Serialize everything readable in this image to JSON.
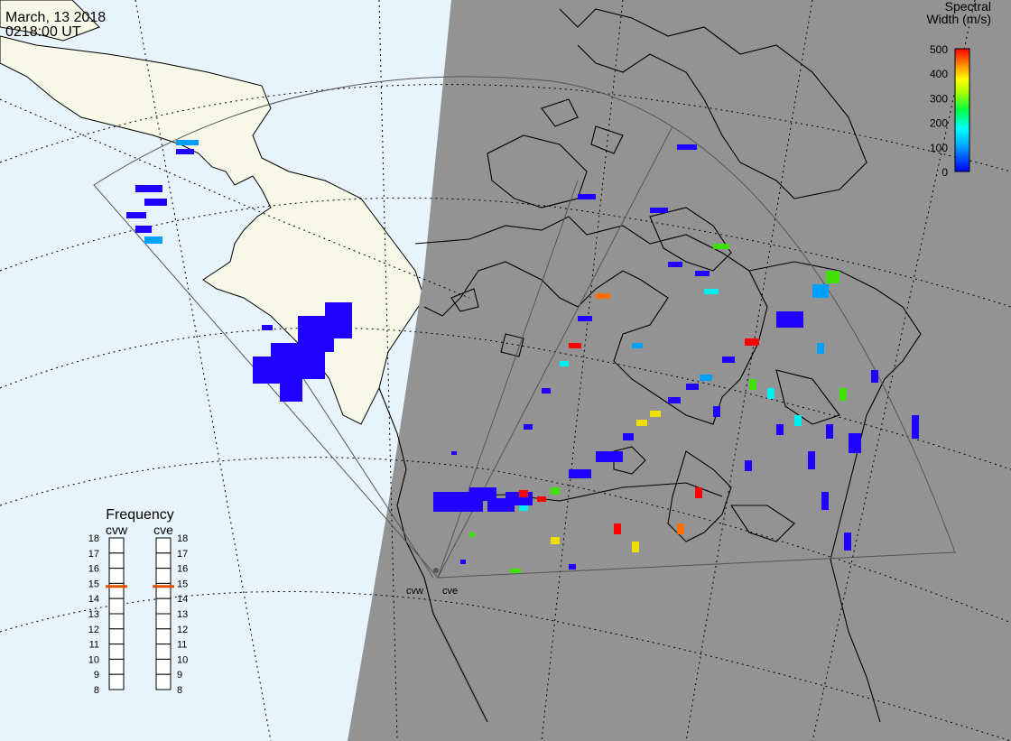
{
  "header": {
    "date": "March, 13 2018",
    "time": "0218:00 UT"
  },
  "legend": {
    "title_line1": "Spectral",
    "title_line2": "Width (m/s)",
    "ticks": [
      "500",
      "400",
      "300",
      "200",
      "100",
      "0"
    ],
    "colors": [
      "#ff0000",
      "#ff8000",
      "#ffff00",
      "#00ff00",
      "#00ffff",
      "#0000ff"
    ]
  },
  "frequency": {
    "title": "Frequency",
    "radar_left": "cvw",
    "radar_right": "cve",
    "scale": [
      "18",
      "17",
      "16",
      "15",
      "14",
      "13",
      "12",
      "11",
      "10",
      "9",
      "8"
    ],
    "left_value": 14.8,
    "right_value": 14.8,
    "marker_color": "#e05000"
  },
  "radars": {
    "left": "cvw",
    "right": "cve"
  },
  "map_colors": {
    "ocean_day": "#e8f4fc",
    "land_day": "#f8f8e8",
    "night": "#939393",
    "scatter_low": "#2000ff",
    "scatter_mid": "#00a0ff",
    "scatter_cyan": "#00f0f0",
    "scatter_green": "#40e000",
    "scatter_yellow": "#f0e000",
    "scatter_orange": "#ff7000",
    "scatter_red": "#ff0000"
  }
}
